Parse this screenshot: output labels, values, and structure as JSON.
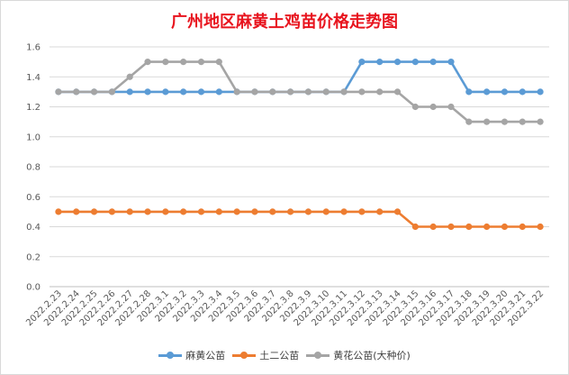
{
  "chart_data": {
    "type": "line",
    "title": "广州地区麻黄土鸡苗价格走势图",
    "categories": [
      "2022.2.23",
      "2022.2.24",
      "2022.2.25",
      "2022.2.26",
      "2022.2.27",
      "2022.2.28",
      "2022.3.1",
      "2022.3.2",
      "2022.3.3",
      "2022.3.4",
      "2022.3.5",
      "2022.3.6",
      "2022.3.7",
      "2022.3.8",
      "2022.3.9",
      "2022.3.10",
      "2022.3.11",
      "2022.3.12",
      "2022.3.13",
      "2022.3.14",
      "2022.3.15",
      "2022.3.16",
      "2022.3.17",
      "2022.3.18",
      "2022.3.19",
      "2022.3.20",
      "2022.3.21",
      "2022.3.22"
    ],
    "yticks": [
      "0.0",
      "0.2",
      "0.4",
      "0.6",
      "0.8",
      "1.0",
      "1.2",
      "1.4",
      "1.6"
    ],
    "ylim": [
      0,
      1.6
    ],
    "grid": true,
    "legend_position": "bottom",
    "series": [
      {
        "name": "麻黄公苗",
        "color": "#5b9bd5",
        "values": [
          1.3,
          1.3,
          1.3,
          1.3,
          1.3,
          1.3,
          1.3,
          1.3,
          1.3,
          1.3,
          1.3,
          1.3,
          1.3,
          1.3,
          1.3,
          1.3,
          1.3,
          1.5,
          1.5,
          1.5,
          1.5,
          1.5,
          1.5,
          1.3,
          1.3,
          1.3,
          1.3,
          1.3
        ]
      },
      {
        "name": "土二公苗",
        "color": "#ed7d31",
        "values": [
          0.5,
          0.5,
          0.5,
          0.5,
          0.5,
          0.5,
          0.5,
          0.5,
          0.5,
          0.5,
          0.5,
          0.5,
          0.5,
          0.5,
          0.5,
          0.5,
          0.5,
          0.5,
          0.5,
          0.5,
          0.4,
          0.4,
          0.4,
          0.4,
          0.4,
          0.4,
          0.4,
          0.4
        ]
      },
      {
        "name": "黄花公苗(大种价)",
        "color": "#a5a5a5",
        "values": [
          1.3,
          1.3,
          1.3,
          1.3,
          1.4,
          1.5,
          1.5,
          1.5,
          1.5,
          1.5,
          1.3,
          1.3,
          1.3,
          1.3,
          1.3,
          1.3,
          1.3,
          1.3,
          1.3,
          1.3,
          1.2,
          1.2,
          1.2,
          1.1,
          1.1,
          1.1,
          1.1,
          1.1
        ]
      }
    ]
  }
}
